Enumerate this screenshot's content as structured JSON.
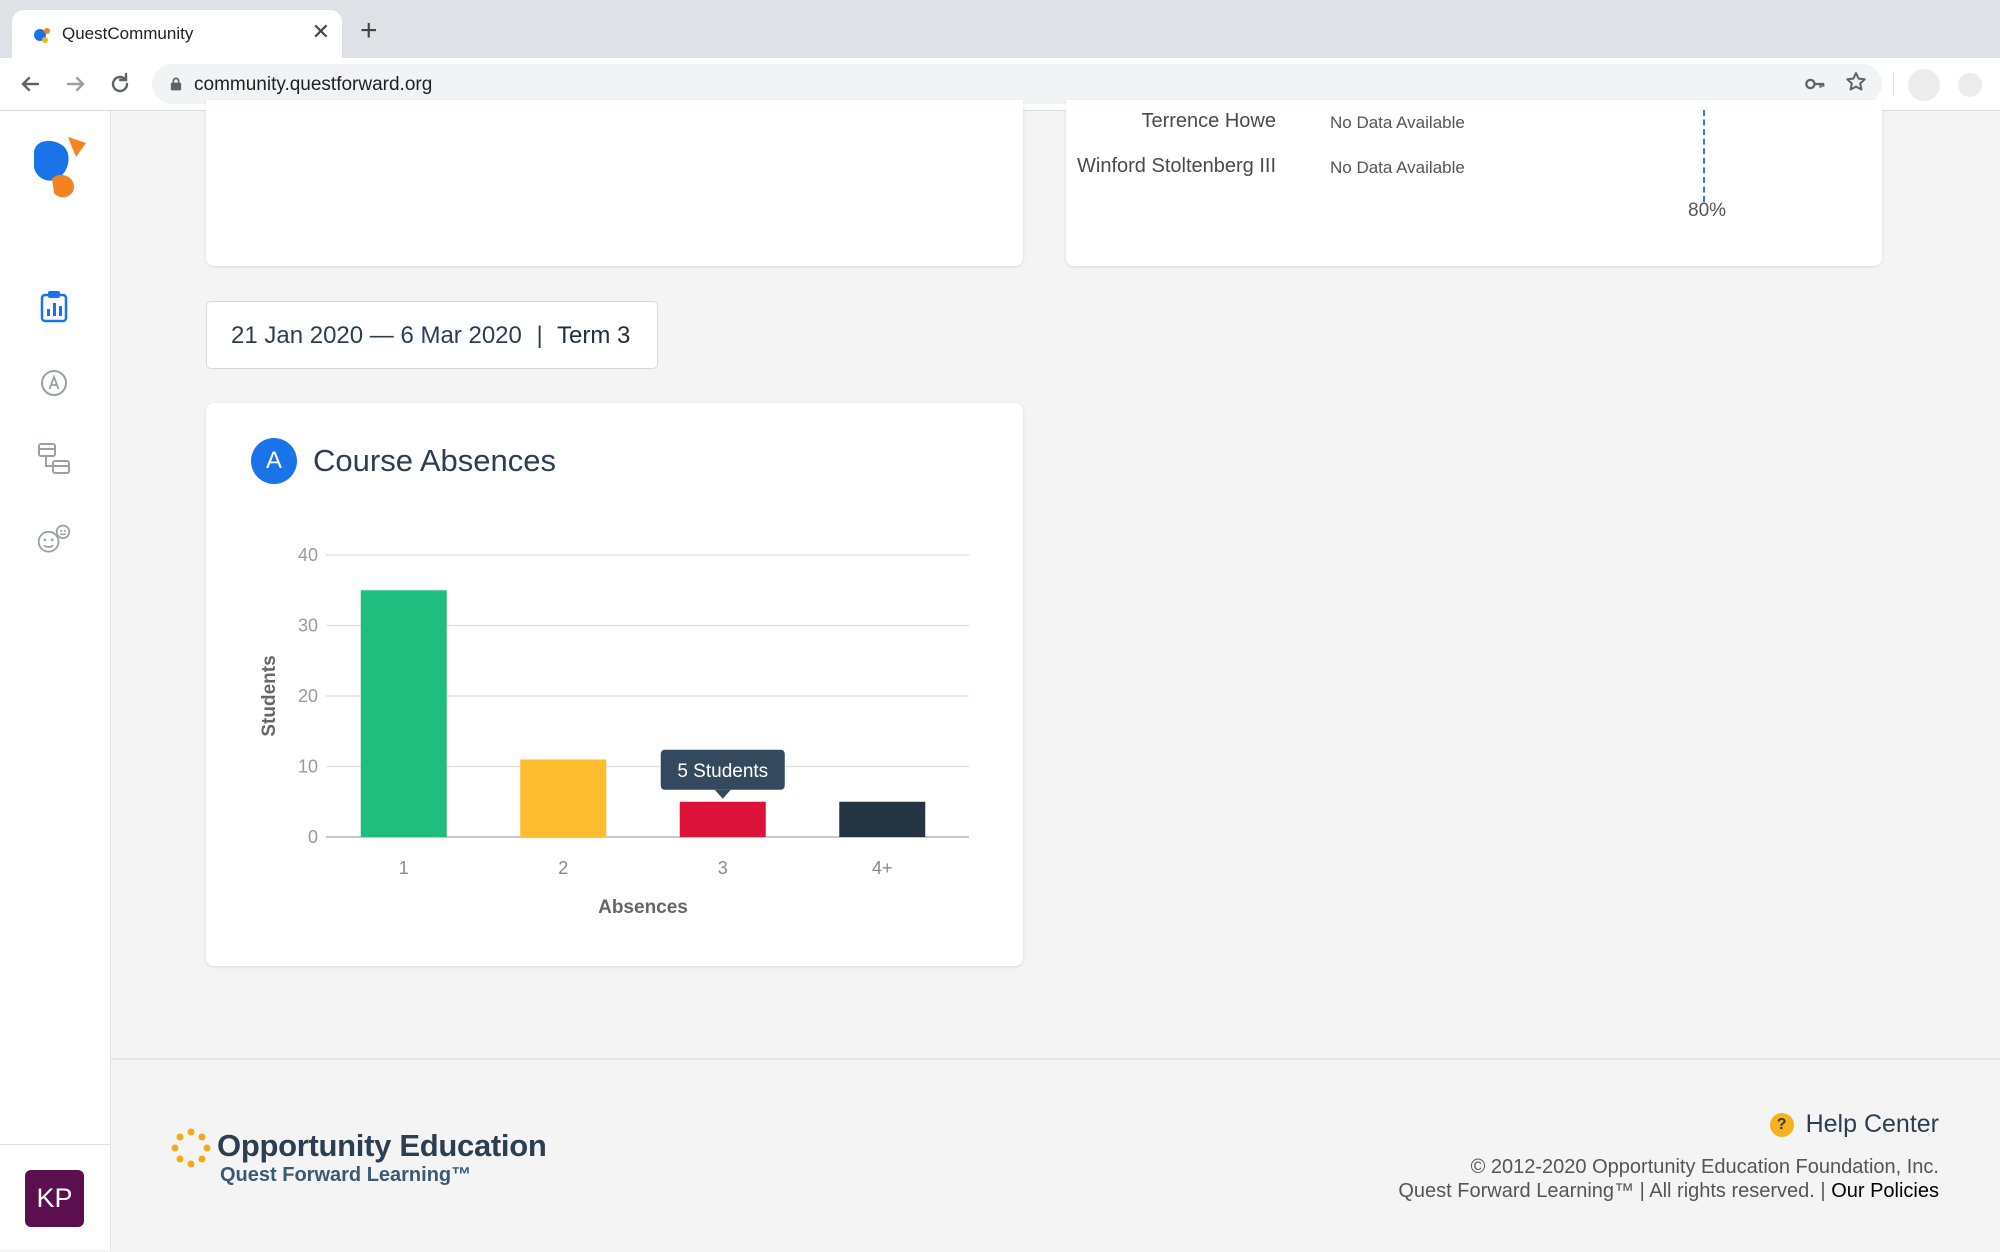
{
  "browser": {
    "tab_title": "QuestCommunity",
    "tab_close": "✕",
    "new_tab": "+",
    "url": "community.questforward.org"
  },
  "sidebar": {
    "avatar_initials": "KP",
    "icons": [
      "dashboard-icon",
      "grades-icon",
      "courses-icon",
      "students-icon"
    ]
  },
  "top_right_card": {
    "rows": [
      {
        "name": "Terrence Howe",
        "value": "No Data Available"
      },
      {
        "name": "Winford Stoltenberg III",
        "value": "No Data Available"
      }
    ],
    "threshold_label": "80%"
  },
  "term": {
    "date_range": "21 Jan 2020 — 6 Mar 2020",
    "separator": "|",
    "term_label": "Term 3"
  },
  "absences_card": {
    "badge": "A",
    "title": "Course Absences"
  },
  "chart_data": {
    "type": "bar",
    "title": "",
    "xlabel": "Absences",
    "ylabel": "Students",
    "categories": [
      "1",
      "2",
      "3",
      "4+"
    ],
    "values": [
      35,
      11,
      5,
      5
    ],
    "ylim": [
      0,
      40
    ],
    "yticks": [
      0,
      10,
      20,
      30,
      40
    ],
    "grid": true,
    "colors": [
      "#1fbe7f",
      "#fdbd2f",
      "#dc1239",
      "#253443"
    ],
    "tooltip": {
      "category": "3",
      "text": "5 Students"
    }
  },
  "footer": {
    "org_name": "Opportunity Education",
    "tagline": "Quest Forward Learning™",
    "help_label": "Help Center",
    "help_icon": "?",
    "copyright": "© 2012-2020 Opportunity Education Foundation, Inc.",
    "rights": "Quest Forward Learning™ | All rights reserved. |",
    "policies_link": "Our Policies"
  },
  "colors": {
    "accent_blue": "#1a73e8",
    "avatar_bg": "#5c0f4f",
    "help_yellow": "#f6b21b"
  }
}
